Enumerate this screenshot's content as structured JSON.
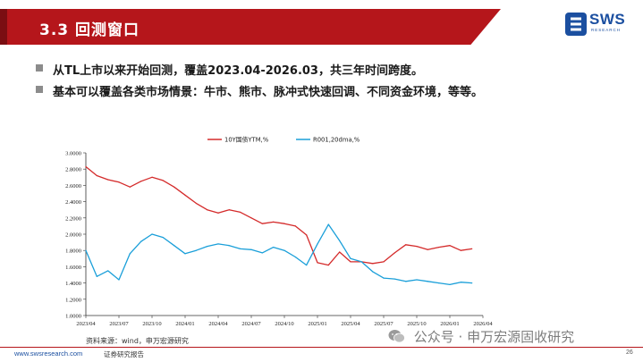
{
  "header": {
    "title": "3.3 回测窗口"
  },
  "logo": {
    "text": "SWS",
    "subtext": "RESEARCH"
  },
  "bullets": [
    "从TL上市以来开始回测，覆盖2023.04-2026.03，共三年时间跨度。",
    "基本可以覆盖各类市场情景：牛市、熊市、脉冲式快速回调、不同资金环境，等等。"
  ],
  "chart_data": {
    "type": "line",
    "legend_position": "top-center",
    "ylim": [
      1.0,
      3.0
    ],
    "y_ticks": [
      "3.0000",
      "2.8000",
      "2.6000",
      "2.4000",
      "2.2000",
      "2.0000",
      "1.8000",
      "1.6000",
      "1.4000",
      "1.2000",
      "1.0000"
    ],
    "x_ticks": [
      "2023/04",
      "2023/07",
      "2023/10",
      "2024/01",
      "2024/04",
      "2024/07",
      "2024/10",
      "2025/01",
      "2025/04",
      "2025/07",
      "2025/10",
      "2026/01",
      "2026/04"
    ],
    "grid": false,
    "series": [
      {
        "name": "10Y国债YTM,%",
        "color": "#d42a2a",
        "x": [
          "2023/04",
          "2023/05",
          "2023/06",
          "2023/07",
          "2023/08",
          "2023/09",
          "2023/10",
          "2023/11",
          "2023/12",
          "2024/01",
          "2024/02",
          "2024/03",
          "2024/04",
          "2024/05",
          "2024/06",
          "2024/07",
          "2024/08",
          "2024/09",
          "2024/10",
          "2024/11",
          "2024/12",
          "2025/01",
          "2025/02",
          "2025/03",
          "2025/04",
          "2025/05",
          "2025/06",
          "2025/07",
          "2025/08",
          "2025/09",
          "2025/10",
          "2025/11",
          "2025/12",
          "2026/01",
          "2026/02",
          "2026/03"
        ],
        "values": [
          2.83,
          2.72,
          2.67,
          2.64,
          2.58,
          2.65,
          2.7,
          2.66,
          2.58,
          2.48,
          2.38,
          2.3,
          2.26,
          2.3,
          2.27,
          2.2,
          2.13,
          2.15,
          2.13,
          2.1,
          1.99,
          1.65,
          1.62,
          1.78,
          1.66,
          1.66,
          1.64,
          1.66,
          1.77,
          1.87,
          1.85,
          1.81,
          1.84,
          1.86,
          1.8,
          1.82
        ]
      },
      {
        "name": "R001,20dma,%",
        "color": "#1a9fd9",
        "x": [
          "2023/04",
          "2023/05",
          "2023/06",
          "2023/07",
          "2023/08",
          "2023/09",
          "2023/10",
          "2023/11",
          "2023/12",
          "2024/01",
          "2024/02",
          "2024/03",
          "2024/04",
          "2024/05",
          "2024/06",
          "2024/07",
          "2024/08",
          "2024/09",
          "2024/10",
          "2024/11",
          "2024/12",
          "2025/01",
          "2025/02",
          "2025/03",
          "2025/04",
          "2025/05",
          "2025/06",
          "2025/07",
          "2025/08",
          "2025/09",
          "2025/10",
          "2025/11",
          "2025/12",
          "2026/01",
          "2026/02",
          "2026/03"
        ],
        "values": [
          1.8,
          1.48,
          1.55,
          1.44,
          1.76,
          1.91,
          2.0,
          1.96,
          1.86,
          1.76,
          1.8,
          1.85,
          1.88,
          1.86,
          1.82,
          1.81,
          1.77,
          1.84,
          1.8,
          1.72,
          1.62,
          1.88,
          2.12,
          1.92,
          1.7,
          1.66,
          1.54,
          1.46,
          1.45,
          1.42,
          1.44,
          1.42,
          1.4,
          1.38,
          1.41,
          1.4
        ]
      }
    ]
  },
  "source_text": "资料来源：wind，申万宏源研究",
  "footer": {
    "website": "www.swsresearch.com",
    "label": "证券研究报告",
    "page": "26"
  },
  "watermark": "公众号 · 申万宏源固收研究",
  "colors": {
    "brand_red": "#b5161b",
    "brand_blue": "#1b4fa0"
  }
}
